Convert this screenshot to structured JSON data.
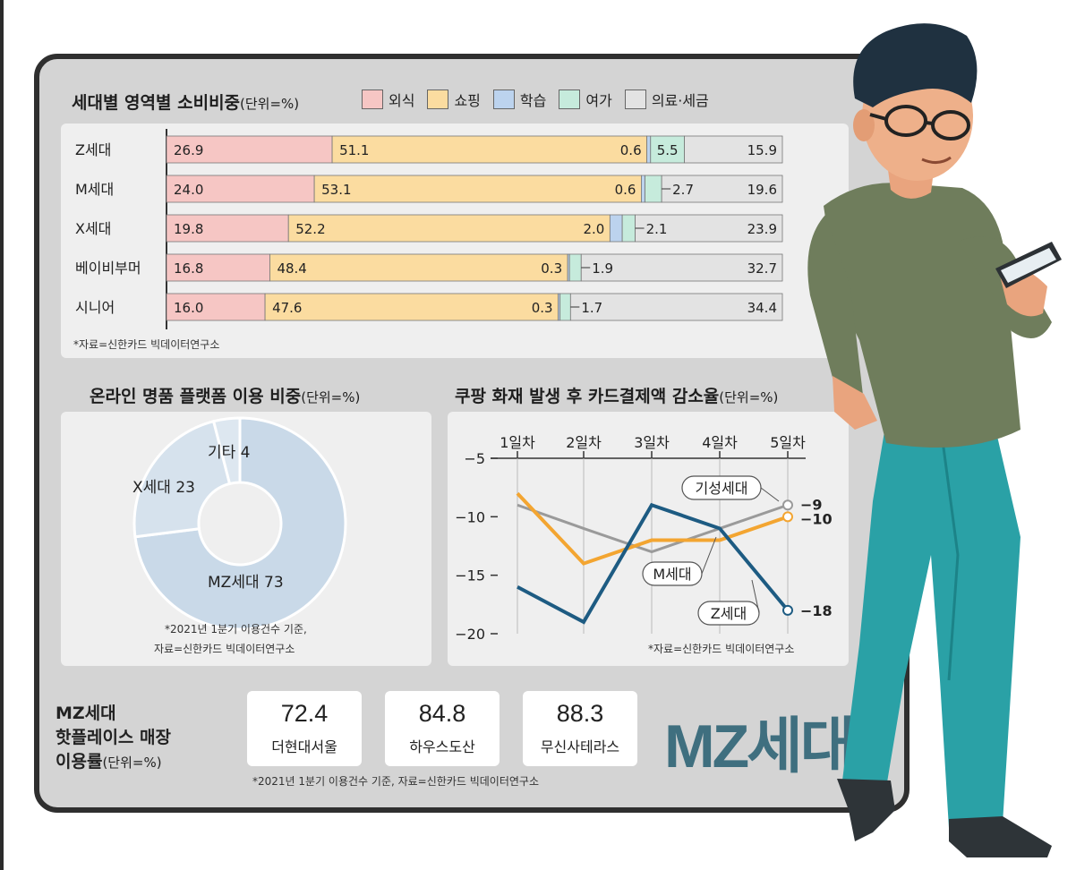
{
  "chart_data": [
    {
      "type": "bar",
      "stacked": true,
      "title": "세대별 영역별 소비비중",
      "unit": "(단위=%)",
      "categories": [
        "Z세대",
        "M세대",
        "X세대",
        "베이비부머",
        "시니어"
      ],
      "series": [
        {
          "name": "외식",
          "color": "#f6c6c4",
          "values": [
            26.9,
            24.0,
            19.8,
            16.8,
            16.0
          ],
          "labels": [
            "26.9",
            "24.0",
            "19.8",
            "16.8",
            "16.0"
          ]
        },
        {
          "name": "쇼핑",
          "color": "#fbdca0",
          "values": [
            51.1,
            53.1,
            52.2,
            48.4,
            47.6
          ],
          "labels": [
            "51.1",
            "53.1",
            "52.2",
            "48.4",
            "47.6"
          ]
        },
        {
          "name": "학습",
          "color": "#bcd3ee",
          "values": [
            0.6,
            0.6,
            2.0,
            0.3,
            0.3
          ],
          "labels": [
            "0.6",
            "0.6",
            "2.0",
            "0.3",
            "0.3"
          ]
        },
        {
          "name": "여가",
          "color": "#c6ebdc",
          "values": [
            5.5,
            2.7,
            2.1,
            1.9,
            1.7
          ],
          "labels": [
            "5.5",
            "2.7",
            "2.1",
            "1.9",
            "1.7"
          ]
        },
        {
          "name": "의료·세금",
          "color": "#e3e3e3",
          "values": [
            15.9,
            19.6,
            23.9,
            32.7,
            34.4
          ],
          "labels": [
            "15.9",
            "19.6",
            "23.9",
            "32.7",
            "34.4"
          ]
        }
      ],
      "note": "*자료=신한카드 빅데이터연구소"
    },
    {
      "type": "pie",
      "donut": true,
      "title": "온라인 명품 플랫폼 이용 비중",
      "unit": "(단위=%)",
      "slices": [
        {
          "label": "MZ세대",
          "value": 73,
          "color": "#c9d9e8"
        },
        {
          "label": "X세대",
          "value": 23,
          "color": "#d6e2ed"
        },
        {
          "label": "기타",
          "value": 4,
          "color": "#dde7f0"
        }
      ],
      "notes": [
        "*2021년 1분기 이용건수 기준,",
        "자료=신한카드 빅데이터연구소"
      ]
    },
    {
      "type": "line",
      "title": "쿠팡 화재 발생 후 카드결제액 감소율",
      "unit": "(단위=%)",
      "categories": [
        "1일차",
        "2일차",
        "3일차",
        "4일차",
        "5일차"
      ],
      "ylim": [
        -20,
        -5
      ],
      "yticks": [
        -5,
        -10,
        -15,
        -20
      ],
      "ytick_labels": [
        "−5",
        "−10",
        "−15",
        "−20"
      ],
      "series": [
        {
          "name": "기성세대",
          "color": "#9a9a9a",
          "values": [
            -9,
            -11,
            -13,
            -11,
            -9
          ],
          "end_label": "−9"
        },
        {
          "name": "M세대",
          "color": "#f3a531",
          "values": [
            -8,
            -14,
            -12,
            -12,
            -10
          ],
          "end_label": "−10"
        },
        {
          "name": "Z세대",
          "color": "#1d5b82",
          "values": [
            -16,
            -19,
            -9,
            -11,
            -18
          ],
          "end_label": "−18"
        }
      ],
      "note": "*자료=신한카드 빅데이터연구소"
    },
    {
      "type": "table",
      "title": "MZ세대 핫플레이스 매장 이용률",
      "title_lines": [
        "MZ세대",
        "핫플레이스 매장",
        "이용률"
      ],
      "unit": "(단위=%)",
      "rows": [
        {
          "value": "72.4",
          "place": "더현대서울"
        },
        {
          "value": "84.8",
          "place": "하우스도산"
        },
        {
          "value": "88.3",
          "place": "무신사테라스"
        }
      ],
      "note": "*2021년 1분기 이용건수 기준, 자료=신한카드 빅데이터연구소"
    }
  ],
  "banner": "MZ세대"
}
